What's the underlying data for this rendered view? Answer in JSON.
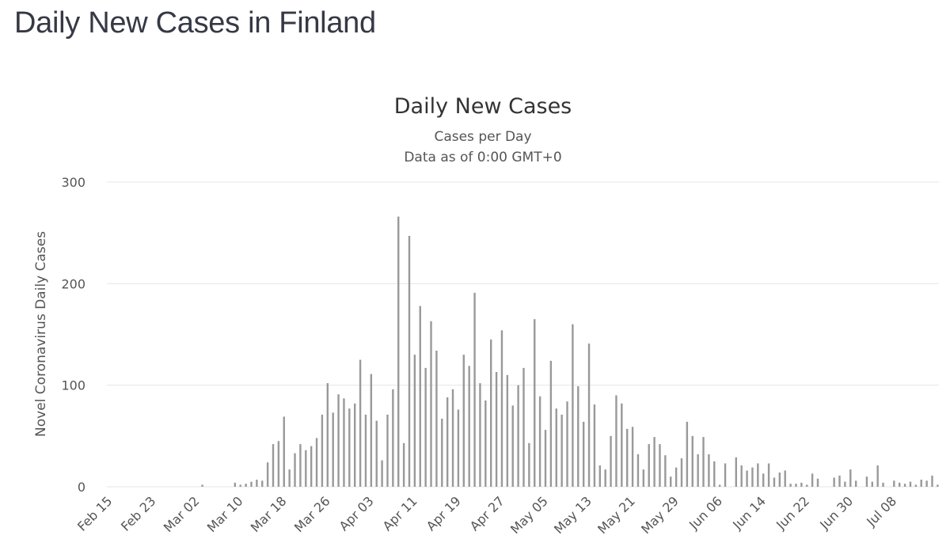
{
  "page": {
    "heading": "Daily New Cases in Finland"
  },
  "chart_data": {
    "type": "bar",
    "title": "Daily New Cases",
    "subtitle_1": "Cases per Day",
    "subtitle_2": "Data as of 0:00 GMT+0",
    "ylabel": "Novel Coronavirus Daily Cases",
    "xlabel": "",
    "ylim": [
      0,
      300
    ],
    "yticks": [
      0,
      100,
      200,
      300
    ],
    "xtick_labels": [
      "Feb 15",
      "Feb 23",
      "Mar 02",
      "Mar 10",
      "Mar 18",
      "Mar 26",
      "Apr 03",
      "Apr 11",
      "Apr 19",
      "Apr 27",
      "May 05",
      "May 13",
      "May 21",
      "May 29",
      "Jun 06",
      "Jun 14",
      "Jun 22",
      "Jun 30",
      "Jul 08"
    ],
    "first_date": "Feb 15",
    "bar_color": "#999999",
    "grid": true,
    "series": [
      {
        "name": "Daily Cases",
        "values": [
          0,
          0,
          0,
          0,
          0,
          0,
          0,
          0,
          0,
          0,
          0,
          0,
          0,
          0,
          0,
          0,
          0,
          2,
          0,
          0,
          0,
          0,
          0,
          4,
          2,
          3,
          5,
          7,
          6,
          24,
          42,
          45,
          69,
          17,
          33,
          42,
          36,
          40,
          48,
          71,
          102,
          73,
          91,
          87,
          77,
          82,
          125,
          71,
          111,
          65,
          26,
          71,
          96,
          266,
          43,
          247,
          130,
          178,
          117,
          163,
          134,
          67,
          88,
          96,
          76,
          130,
          119,
          191,
          102,
          85,
          145,
          113,
          154,
          110,
          80,
          100,
          117,
          43,
          165,
          89,
          56,
          124,
          77,
          71,
          84,
          160,
          99,
          64,
          141,
          81,
          21,
          17,
          50,
          90,
          82,
          57,
          59,
          32,
          17,
          42,
          49,
          42,
          31,
          10,
          19,
          28,
          64,
          50,
          32,
          49,
          32,
          25,
          2,
          23,
          0,
          29,
          21,
          16,
          19,
          23,
          13,
          23,
          9,
          14,
          16,
          3,
          3,
          4,
          2,
          13,
          8,
          0,
          0,
          9,
          11,
          5,
          17,
          6,
          0,
          10,
          5,
          21,
          4,
          0,
          6,
          4,
          3,
          5,
          2,
          7,
          6,
          11,
          2
        ]
      }
    ]
  }
}
